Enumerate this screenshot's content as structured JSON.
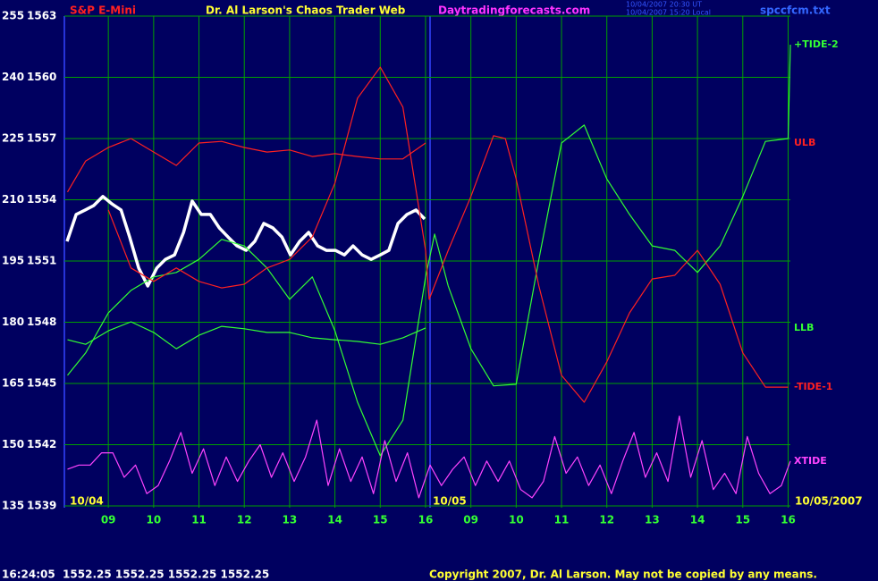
{
  "chart_data": {
    "type": "line",
    "instrument": "S&P E-Mini",
    "title": "Dr. Al Larson's Chaos Trader Web",
    "website": "Daytradingforecasts.com",
    "timestamps": [
      "10/04/2007 20:30 UT",
      "10/04/2007 15:20 Local"
    ],
    "file": "spccfcm.txt",
    "date_labels": [
      "10/04",
      "10/05",
      "10/05/2007"
    ],
    "footer_quote": "16:24:05  1552.25 1552.25 1552.25 1552.25",
    "copyright": "Copyright 2007, Dr. Al Larson. May not be copied by any means.",
    "xlim": [
      -0.97,
      15.05
    ],
    "xticks": [
      {
        "value": 0,
        "label": "09"
      },
      {
        "value": 1,
        "label": "10"
      },
      {
        "value": 2,
        "label": "11"
      },
      {
        "value": 3,
        "label": "12"
      },
      {
        "value": 4,
        "label": "13"
      },
      {
        "value": 5,
        "label": "14"
      },
      {
        "value": 6,
        "label": "15"
      },
      {
        "value": 7,
        "label": "16"
      },
      {
        "value": 8,
        "label": "09"
      },
      {
        "value": 9,
        "label": "10"
      },
      {
        "value": 10,
        "label": "11"
      },
      {
        "value": 11,
        "label": "12"
      },
      {
        "value": 12,
        "label": "13"
      },
      {
        "value": 13,
        "label": "14"
      },
      {
        "value": 14,
        "label": "15"
      },
      {
        "value": 15,
        "label": "16"
      }
    ],
    "ylim": [
      135,
      255
    ],
    "yticks": [
      135,
      150,
      165,
      180,
      195,
      210,
      225,
      240,
      255
    ],
    "y2lim": [
      1539,
      1563
    ],
    "y2ticks": [
      1539,
      1542,
      1545,
      1548,
      1551,
      1554,
      1557,
      1560,
      1563
    ],
    "grid": true,
    "series": [
      {
        "color": "#ffffff",
        "x": [
          -0.91,
          -0.71,
          -0.51,
          -0.32,
          -0.12,
          0.08,
          0.28,
          0.47,
          0.67,
          0.87,
          1.07,
          1.26,
          1.46,
          1.66,
          1.85,
          2.05,
          2.25,
          2.45,
          2.64,
          2.84,
          3.04,
          3.23,
          3.43,
          3.63,
          3.83,
          4.02,
          4.22,
          4.42,
          4.62,
          4.81,
          5.01,
          5.21,
          5.4,
          5.6,
          5.8,
          6.0,
          6.19,
          6.39,
          6.59,
          6.79,
          6.98
        ],
        "values": [
          199.8,
          206.4,
          207.5,
          208.6,
          210.8,
          209.0,
          207.5,
          200.9,
          193.3,
          188.9,
          193.3,
          195.4,
          196.5,
          202.0,
          209.7,
          206.4,
          206.4,
          203.1,
          200.9,
          198.7,
          197.6,
          199.8,
          204.2,
          203.1,
          200.9,
          196.5,
          199.8,
          202.0,
          198.7,
          197.6,
          197.6,
          196.5,
          198.7,
          196.5,
          195.4,
          196.5,
          197.6,
          204.2,
          206.4,
          207.5,
          205.3
        ]
      },
      {
        "name": "+TIDE-2",
        "color": "#33ff33",
        "x": [
          -0.9,
          -0.5,
          0,
          0.5,
          1,
          1.5,
          2,
          2.5,
          3,
          3.5,
          4,
          4.5,
          5,
          5.5,
          6,
          6.5,
          7,
          7.2,
          7.5,
          8,
          8.5,
          9,
          9.5,
          10,
          10.5,
          11,
          11.5,
          12,
          12.5,
          13,
          13.5,
          14,
          14.5,
          15,
          15.05
        ],
        "values": [
          167.0,
          172.5,
          182.3,
          187.8,
          191.1,
          192.2,
          195.4,
          200.3,
          198.7,
          193.3,
          185.6,
          191.1,
          177.9,
          160.4,
          147.3,
          156.0,
          191.1,
          201.6,
          188.9,
          173.5,
          164.4,
          164.8,
          195.4,
          223.9,
          228.3,
          215.1,
          206.4,
          198.7,
          197.6,
          192.2,
          198.7,
          210.8,
          224.3,
          225.0,
          248.0
        ]
      },
      {
        "name": "ULB",
        "color": "#ff2020",
        "x": [
          -0.9,
          -0.5,
          0,
          0.5,
          1,
          1.5,
          2,
          2.5,
          3,
          3.5,
          4,
          4.5,
          5,
          5.5,
          6,
          6.5,
          7
        ],
        "values": [
          211.9,
          219.5,
          222.8,
          225.0,
          221.7,
          218.4,
          223.9,
          224.3,
          222.8,
          221.7,
          222.2,
          220.6,
          221.3,
          220.6,
          220.0,
          220.0,
          223.9
        ]
      },
      {
        "name": "LLB",
        "color": "#33ff33",
        "x": [
          -0.9,
          -0.5,
          0,
          0.5,
          1,
          1.5,
          2,
          2.5,
          3,
          3.5,
          4,
          4.5,
          5,
          5.5,
          6,
          6.5,
          7
        ],
        "values": [
          175.7,
          174.6,
          177.9,
          180.1,
          177.5,
          173.5,
          176.8,
          179.0,
          178.4,
          177.5,
          177.5,
          176.2,
          175.7,
          175.3,
          174.6,
          176.2,
          178.6
        ]
      },
      {
        "name": "-TIDE-1",
        "color": "#ff2020",
        "x": [
          0,
          0.5,
          1,
          1.5,
          2,
          2.5,
          3,
          3.5,
          4,
          4.5,
          5,
          5.5,
          6,
          6.5,
          7,
          7.08,
          7.5,
          8,
          8.5,
          8.76,
          9,
          9.5,
          10,
          10.5,
          11,
          11.5,
          12,
          12.5,
          13,
          13.5,
          14,
          14.5,
          15
        ],
        "values": [
          207.5,
          193.3,
          190.0,
          193.3,
          190.0,
          188.4,
          189.3,
          193.3,
          195.4,
          200.9,
          214.1,
          234.9,
          242.5,
          232.7,
          197.6,
          185.6,
          197.6,
          210.8,
          225.7,
          225.0,
          215.1,
          188.9,
          167.0,
          160.4,
          170.3,
          182.3,
          190.6,
          191.5,
          197.6,
          189.3,
          172.5,
          164.1,
          164.1
        ]
      },
      {
        "name": "XTIDE",
        "color": "#ff44ff",
        "x": [
          -0.9,
          -0.65,
          -0.4,
          -0.15,
          0.1,
          0.35,
          0.6,
          0.85,
          1.1,
          1.35,
          1.6,
          1.85,
          2.1,
          2.35,
          2.6,
          2.85,
          3.1,
          3.35,
          3.6,
          3.85,
          4.1,
          4.35,
          4.6,
          4.85,
          5.1,
          5.35,
          5.6,
          5.85,
          6.1,
          6.35,
          6.6,
          6.85,
          7.1,
          7.35,
          7.6,
          7.85,
          8.1,
          8.35,
          8.6,
          8.85,
          9.1,
          9.35,
          9.6,
          9.85,
          10.1,
          10.35,
          10.6,
          10.85,
          11.1,
          11.35,
          11.6,
          11.85,
          12.1,
          12.35,
          12.6,
          12.85,
          13.1,
          13.35,
          13.6,
          13.85,
          14.1,
          14.35,
          14.6,
          14.85,
          15.05
        ],
        "values": [
          144,
          145,
          145,
          148,
          148,
          142,
          145,
          138,
          140,
          146,
          153,
          143,
          149,
          140,
          147,
          141,
          146,
          150,
          142,
          148,
          141,
          147,
          156,
          140,
          149,
          141,
          147,
          138,
          151,
          141,
          148,
          137,
          145,
          140,
          144,
          147,
          140,
          146,
          141,
          146,
          139,
          137,
          141,
          152,
          143,
          147,
          140,
          145,
          138,
          146,
          153,
          142,
          148,
          141,
          157,
          142,
          151,
          139,
          143,
          138,
          152,
          143,
          138,
          140,
          146
        ]
      }
    ]
  }
}
